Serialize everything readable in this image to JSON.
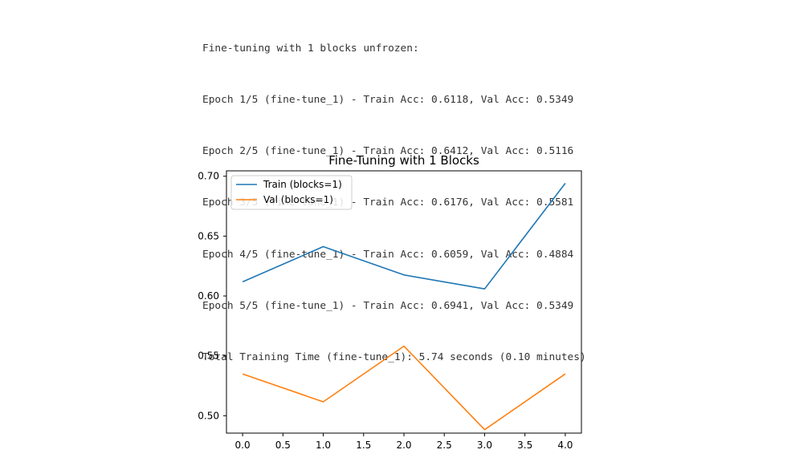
{
  "log_lines": [
    "Fine-tuning with 1 blocks unfrozen:",
    "Epoch 1/5 (fine-tune_1) - Train Acc: 0.6118, Val Acc: 0.5349",
    "Epoch 2/5 (fine-tune_1) - Train Acc: 0.6412, Val Acc: 0.5116",
    "Epoch 3/5 (fine-tune_1) - Train Acc: 0.6176, Val Acc: 0.5581",
    "Epoch 4/5 (fine-tune_1) - Train Acc: 0.6059, Val Acc: 0.4884",
    "Epoch 5/5 (fine-tune_1) - Train Acc: 0.6941, Val Acc: 0.5349",
    "Total Training Time (fine-tune_1): 5.74 seconds (0.10 minutes)"
  ],
  "chart_data": {
    "type": "line",
    "title": "Fine-Tuning with 1 Blocks",
    "xlabel": "",
    "ylabel": "",
    "x": [
      0,
      1,
      2,
      3,
      4
    ],
    "series": [
      {
        "name": "Train (blocks=1)",
        "color": "#1f77b4",
        "values": [
          0.6118,
          0.6412,
          0.6176,
          0.6059,
          0.6941
        ]
      },
      {
        "name": "Val (blocks=1)",
        "color": "#ff7f0e",
        "values": [
          0.5349,
          0.5116,
          0.5581,
          0.4884,
          0.5349
        ]
      }
    ],
    "xlim": [
      -0.2,
      4.2
    ],
    "ylim": [
      0.4855,
      0.7045
    ],
    "xticks": [
      "0.0",
      "0.5",
      "1.0",
      "1.5",
      "2.0",
      "2.5",
      "3.0",
      "3.5",
      "4.0"
    ],
    "yticks": [
      "0.50",
      "0.55",
      "0.60",
      "0.65",
      "0.70"
    ],
    "grid": false,
    "legend_position": "upper left"
  }
}
